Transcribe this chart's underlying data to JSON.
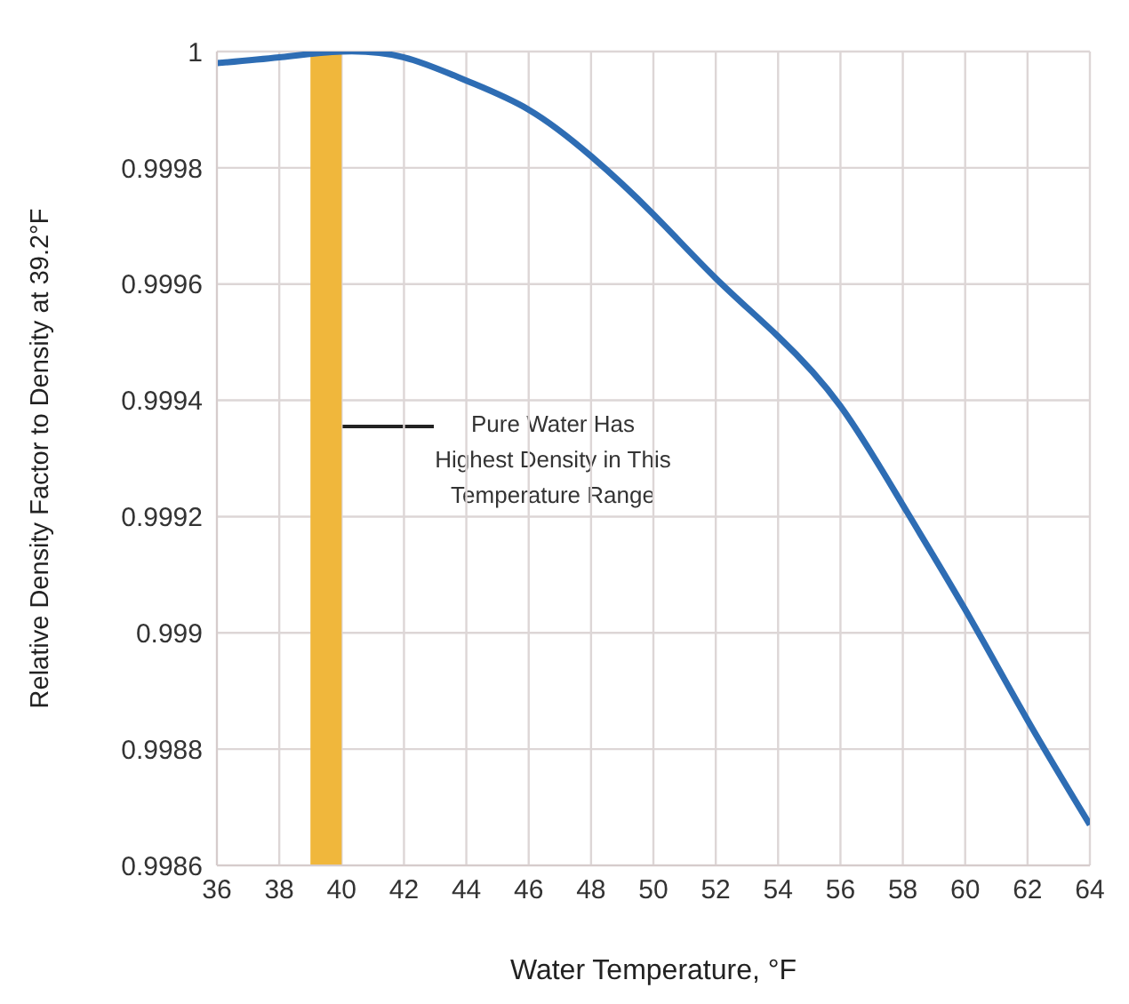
{
  "chart_data": {
    "type": "line",
    "xlabel": "Water Temperature, °F",
    "ylabel": "Relative Density Factor to Density at 39.2°F",
    "x": [
      36,
      38,
      40,
      42,
      44,
      46,
      48,
      50,
      52,
      54,
      56,
      58,
      60,
      62,
      64
    ],
    "series": [
      {
        "color": "#2e6db4",
        "values": [
          0.99998,
          0.99999,
          1,
          0.99999,
          0.99995,
          0.9999,
          0.99982,
          0.99972,
          0.99961,
          0.99951,
          0.99939,
          0.99922,
          0.99904,
          0.99885,
          0.99867
        ]
      }
    ],
    "xlim": [
      36,
      64
    ],
    "xticks": [
      36,
      38,
      40,
      42,
      44,
      46,
      48,
      50,
      52,
      54,
      56,
      58,
      60,
      62,
      64
    ],
    "ylim": [
      0.9986,
      1
    ],
    "yticks": [
      0.9986,
      0.9988,
      0.999,
      0.9992,
      0.9994,
      0.9996,
      0.9998,
      1
    ],
    "grid": true,
    "marker": "none",
    "line_style": "solid",
    "bands": [
      {
        "axis": "x",
        "from": 39,
        "to": 40,
        "color": "#f0b73c"
      }
    ],
    "annotations": [
      "Pure Water Has\nHighest Density in This\nTemperature Range"
    ]
  }
}
